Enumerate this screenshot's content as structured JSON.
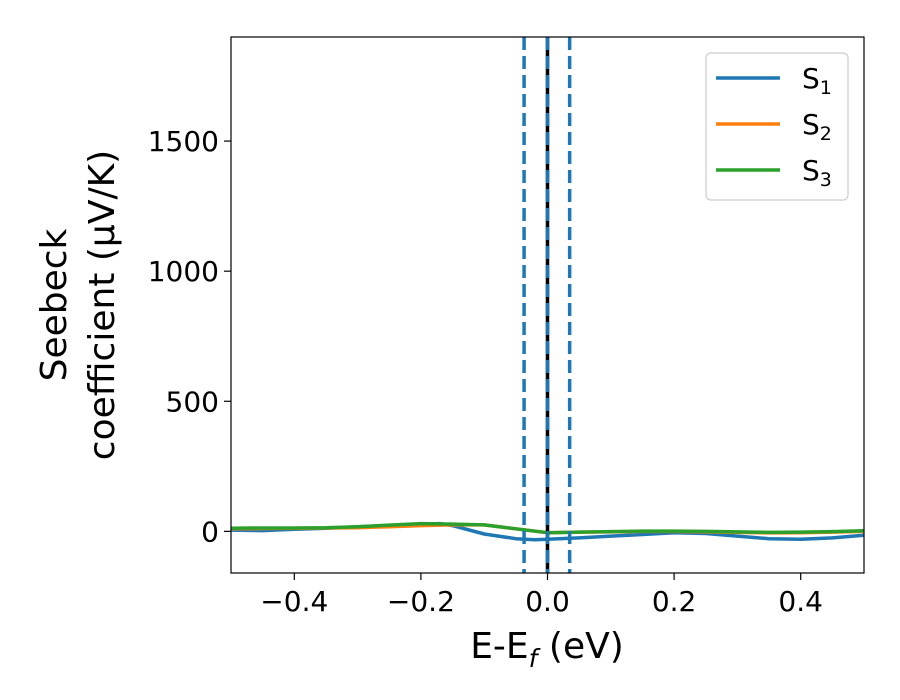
{
  "chart_data": {
    "type": "line",
    "xlabel": "E-E",
    "xlabel_sub": "f",
    "xlabel_suffix": " (eV)",
    "ylabel_line1": "Seebeck",
    "ylabel_line2": "coefficient  (μV/K)",
    "xlim": [
      -0.5,
      0.5
    ],
    "ylim": [
      -160,
      1900
    ],
    "xticks": [
      -0.4,
      -0.2,
      0.0,
      0.2,
      0.4
    ],
    "xtick_labels": [
      "−0.4",
      "−0.2",
      "0.0",
      "0.2",
      "0.4"
    ],
    "yticks": [
      0,
      500,
      1000,
      1500
    ],
    "ytick_labels": [
      "0",
      "500",
      "1000",
      "1500"
    ],
    "grid": false,
    "legend_position": "top-right",
    "series": [
      {
        "name": "S",
        "name_sub": "1",
        "color": "#1f77b4",
        "x": [
          -0.5,
          -0.45,
          -0.4,
          -0.35,
          -0.3,
          -0.25,
          -0.2,
          -0.17,
          -0.15,
          -0.1,
          -0.05,
          -0.02,
          0.0,
          0.05,
          0.1,
          0.15,
          0.2,
          0.25,
          0.3,
          0.35,
          0.4,
          0.45,
          0.5
        ],
        "y": [
          5,
          3,
          8,
          12,
          18,
          22,
          28,
          30,
          22,
          -10,
          -28,
          -32,
          -30,
          -25,
          -18,
          -12,
          -5,
          -8,
          -18,
          -28,
          -30,
          -25,
          -15
        ]
      },
      {
        "name": "S",
        "name_sub": "2",
        "color": "#ff7f0e",
        "x": [
          -0.5,
          -0.45,
          -0.4,
          -0.35,
          -0.3,
          -0.25,
          -0.2,
          -0.15,
          -0.1,
          -0.05,
          0.0,
          0.05,
          0.1,
          0.15,
          0.2,
          0.25,
          0.3,
          0.35,
          0.4,
          0.45,
          0.5
        ],
        "y": [
          10,
          11,
          12,
          13,
          14,
          18,
          22,
          25,
          25,
          10,
          -5,
          -3,
          -2,
          0,
          0,
          -2,
          -4,
          -6,
          -5,
          -3,
          0
        ]
      },
      {
        "name": "S",
        "name_sub": "3",
        "color": "#2ca02c",
        "x": [
          -0.5,
          -0.45,
          -0.4,
          -0.35,
          -0.3,
          -0.25,
          -0.2,
          -0.15,
          -0.1,
          -0.05,
          0.0,
          0.05,
          0.1,
          0.15,
          0.2,
          0.25,
          0.3,
          0.35,
          0.4,
          0.45,
          0.5
        ],
        "y": [
          12,
          13,
          13,
          14,
          18,
          24,
          30,
          28,
          25,
          10,
          -5,
          -3,
          -1,
          1,
          1,
          0,
          -2,
          -4,
          -3,
          -1,
          2
        ]
      }
    ],
    "vlines": [
      {
        "x": -0.037,
        "style": "dashed",
        "color": "#1f77b4"
      },
      {
        "x": 0.0,
        "style": "solid",
        "color": "#000000"
      },
      {
        "x": 0.0,
        "style": "dashed",
        "color": "#1f77b4"
      },
      {
        "x": 0.035,
        "style": "dashed",
        "color": "#1f77b4"
      }
    ]
  }
}
